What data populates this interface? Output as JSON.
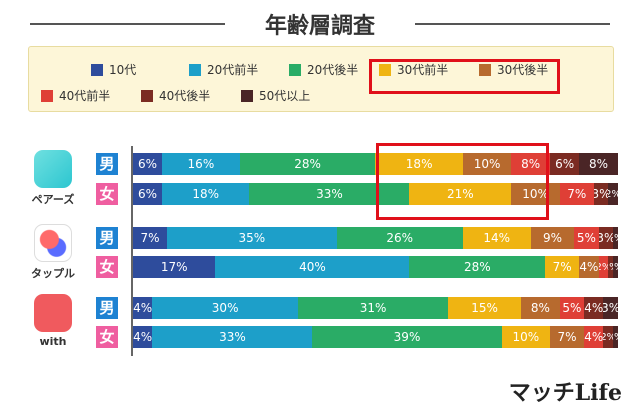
{
  "title": "年齢層調査",
  "brand": "マッチLife",
  "chart_data": {
    "type": "bar",
    "orientation": "horizontal",
    "stacked": true,
    "unit": "%",
    "legend": {
      "placement": "top",
      "entries": [
        "10代",
        "20代前半",
        "20代後半",
        "30代前半",
        "30代後半",
        "40代前半",
        "40代後半",
        "50代以上"
      ]
    },
    "colors": [
      "#2e4c9c",
      "#1d9fc9",
      "#2aac66",
      "#efb412",
      "#b76a2e",
      "#df3f36",
      "#7b2b22",
      "#4a2526"
    ],
    "groups": [
      {
        "app": "ペアーズ",
        "rows": [
          {
            "sex": "男",
            "values": [
              6,
              16,
              28,
              18,
              10,
              8,
              6,
              8
            ]
          },
          {
            "sex": "女",
            "values": [
              6,
              18,
              33,
              21,
              10,
              7,
              3,
              2
            ]
          }
        ]
      },
      {
        "app": "タップル",
        "rows": [
          {
            "sex": "男",
            "values": [
              7,
              35,
              26,
              14,
              9,
              5,
              3,
              1
            ]
          },
          {
            "sex": "女",
            "values": [
              17,
              40,
              28,
              7,
              4,
              2,
              1,
              1
            ]
          }
        ]
      },
      {
        "app": "with",
        "rows": [
          {
            "sex": "男",
            "values": [
              4,
              30,
              31,
              15,
              8,
              5,
              4,
              3
            ]
          },
          {
            "sex": "女",
            "values": [
              4,
              33,
              39,
              10,
              7,
              4,
              2,
              1
            ]
          }
        ]
      }
    ],
    "highlight": [
      "30代前半",
      "30代後半"
    ]
  }
}
